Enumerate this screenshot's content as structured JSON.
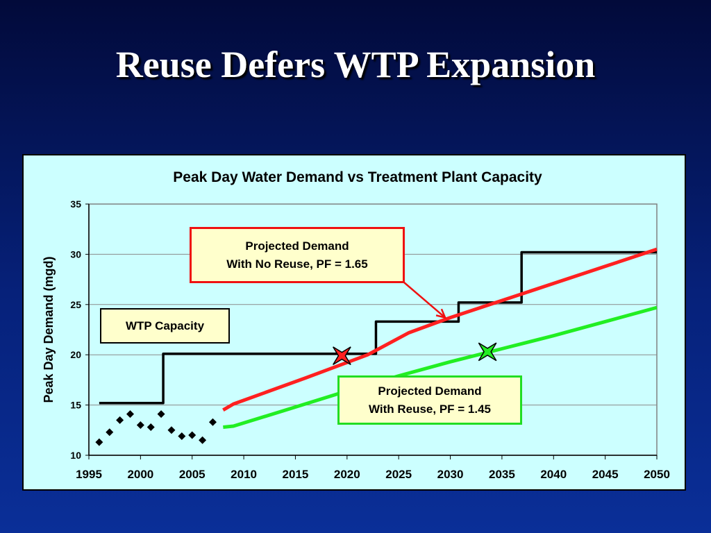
{
  "slide": {
    "title": "Reuse Defers WTP Expansion"
  },
  "colors": {
    "panel": "#ccffff",
    "capacity": "#000000",
    "no_reuse": "#ff2020",
    "reuse": "#22ee22",
    "historical": "#000000"
  },
  "chart_data": {
    "type": "line",
    "title": "Peak Day Water Demand vs Treatment Plant Capacity",
    "xlabel": "",
    "ylabel": "Peak Day Demand (mgd)",
    "xlim": [
      1995,
      2050
    ],
    "ylim": [
      10,
      35
    ],
    "xticks": [
      1995,
      2000,
      2005,
      2010,
      2015,
      2020,
      2025,
      2030,
      2035,
      2040,
      2045,
      2050
    ],
    "yticks": [
      10,
      15,
      20,
      25,
      30,
      35
    ],
    "grid": "horizontal",
    "series": [
      {
        "key": "capacity",
        "style": "step",
        "x": [
          1996,
          2002.2,
          2002.2,
          2022.8,
          2022.8,
          2030.8,
          2030.8,
          2036.9,
          2036.9,
          2050
        ],
        "y": [
          15.2,
          15.2,
          20.1,
          20.1,
          23.3,
          23.3,
          25.2,
          25.2,
          30.2,
          30.2
        ]
      },
      {
        "key": "no_reuse",
        "style": "line",
        "x": [
          2008,
          2009,
          2016,
          2022,
          2026,
          2030,
          2035,
          2040,
          2045,
          2050
        ],
        "y": [
          14.5,
          15.1,
          17.7,
          20.0,
          22.2,
          23.7,
          25.4,
          27.1,
          28.8,
          30.5
        ]
      },
      {
        "key": "reuse",
        "style": "line",
        "x": [
          2008,
          2009,
          2015,
          2020,
          2025,
          2030,
          2035,
          2040,
          2045,
          2050
        ],
        "y": [
          12.8,
          12.9,
          14.8,
          16.4,
          17.9,
          19.3,
          20.6,
          21.9,
          23.3,
          24.7
        ]
      },
      {
        "key": "historical",
        "style": "scatter",
        "x": [
          1996,
          1997,
          1998,
          1999,
          2000,
          2001,
          2002,
          2003,
          2004,
          2005,
          2006,
          2007
        ],
        "y": [
          11.3,
          12.3,
          13.5,
          14.1,
          13.0,
          12.8,
          14.1,
          12.5,
          11.9,
          12.0,
          11.5,
          13.3
        ]
      }
    ],
    "markers": [
      {
        "key": "no_reuse",
        "x": 2019.5,
        "y": 19.9
      },
      {
        "key": "reuse",
        "x": 2033.6,
        "y": 20.3
      }
    ],
    "annotations": {
      "wtp_capacity": {
        "text": "WTP Capacity"
      },
      "no_reuse": {
        "line1": "Projected Demand",
        "line2": "With No Reuse, PF = 1.65",
        "arrow_to": {
          "x": 2029.5,
          "y": 23.7
        }
      },
      "reuse": {
        "line1": "Projected Demand",
        "line2": "With Reuse, PF = 1.45"
      }
    }
  }
}
